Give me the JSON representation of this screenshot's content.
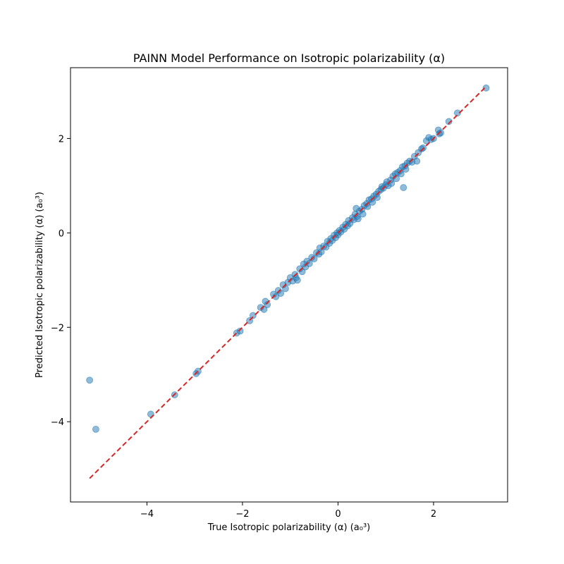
{
  "chart_data": {
    "type": "scatter",
    "title": "PAINN Model Performance on Isotropic polarizability (α)",
    "xlabel": "True Isotropic polarizability (α) (a₀³)",
    "ylabel": "Predicted Isotropic polarizability (α) (a₀³)",
    "xlim": [
      -5.6,
      3.55
    ],
    "ylim": [
      -5.7,
      3.5
    ],
    "xticks": [
      -4,
      -2,
      0,
      2
    ],
    "yticks": [
      -4,
      -2,
      0,
      2
    ],
    "xtick_labels": [
      "−4",
      "−2",
      "0",
      "2"
    ],
    "ytick_labels": [
      "−4",
      "−2",
      "0",
      "2"
    ],
    "grid": false,
    "legend": "none",
    "point_color": "#1f77b4",
    "point_alpha": 0.5,
    "reference_line": {
      "x": [
        -5.2,
        3.1
      ],
      "y": [
        -5.2,
        3.1
      ],
      "color": "#d62728",
      "style": "dashed"
    },
    "points": [
      [
        -5.2,
        -3.12
      ],
      [
        -5.07,
        -4.16
      ],
      [
        -3.92,
        -3.84
      ],
      [
        -3.42,
        -3.43
      ],
      [
        -2.97,
        -2.98
      ],
      [
        -2.93,
        -2.93
      ],
      [
        -2.12,
        -2.12
      ],
      [
        -2.05,
        -2.08
      ],
      [
        -1.85,
        -1.86
      ],
      [
        -1.78,
        -1.75
      ],
      [
        -1.62,
        -1.58
      ],
      [
        -1.55,
        -1.62
      ],
      [
        -1.52,
        -1.45
      ],
      [
        -1.48,
        -1.52
      ],
      [
        -1.35,
        -1.3
      ],
      [
        -1.3,
        -1.35
      ],
      [
        -1.25,
        -1.22
      ],
      [
        -1.2,
        -1.28
      ],
      [
        -1.15,
        -1.1
      ],
      [
        -1.1,
        -1.18
      ],
      [
        -1.05,
        -1.05
      ],
      [
        -1.0,
        -0.95
      ],
      [
        -0.95,
        -1.02
      ],
      [
        -0.9,
        -0.88
      ],
      [
        -0.88,
        -0.95
      ],
      [
        -0.85,
        -1.0
      ],
      [
        -0.8,
        -0.76
      ],
      [
        -0.75,
        -0.82
      ],
      [
        -0.72,
        -0.66
      ],
      [
        -0.68,
        -0.72
      ],
      [
        -0.65,
        -0.6
      ],
      [
        -0.6,
        -0.65
      ],
      [
        -0.55,
        -0.52
      ],
      [
        -0.5,
        -0.55
      ],
      [
        -0.45,
        -0.42
      ],
      [
        -0.4,
        -0.45
      ],
      [
        -0.38,
        -0.32
      ],
      [
        -0.35,
        -0.4
      ],
      [
        -0.3,
        -0.28
      ],
      [
        -0.25,
        -0.3
      ],
      [
        -0.22,
        -0.18
      ],
      [
        -0.18,
        -0.22
      ],
      [
        -0.15,
        -0.12
      ],
      [
        -0.12,
        -0.16
      ],
      [
        -0.08,
        -0.05
      ],
      [
        -0.05,
        -0.1
      ],
      [
        -0.02,
        0.0
      ],
      [
        0.0,
        -0.04
      ],
      [
        0.03,
        0.05
      ],
      [
        0.06,
        0.02
      ],
      [
        0.1,
        0.12
      ],
      [
        0.13,
        0.08
      ],
      [
        0.16,
        0.18
      ],
      [
        0.2,
        0.15
      ],
      [
        0.22,
        0.26
      ],
      [
        0.25,
        0.2
      ],
      [
        0.3,
        0.32
      ],
      [
        0.33,
        0.28
      ],
      [
        0.36,
        0.4
      ],
      [
        0.38,
        0.52
      ],
      [
        0.4,
        0.35
      ],
      [
        0.42,
        0.3
      ],
      [
        0.45,
        0.46
      ],
      [
        0.5,
        0.5
      ],
      [
        0.52,
        0.4
      ],
      [
        0.55,
        0.58
      ],
      [
        0.6,
        0.62
      ],
      [
        0.62,
        0.56
      ],
      [
        0.65,
        0.7
      ],
      [
        0.7,
        0.72
      ],
      [
        0.72,
        0.65
      ],
      [
        0.75,
        0.78
      ],
      [
        0.8,
        0.82
      ],
      [
        0.82,
        0.75
      ],
      [
        0.85,
        0.88
      ],
      [
        0.9,
        0.92
      ],
      [
        0.92,
        0.98
      ],
      [
        0.95,
        0.95
      ],
      [
        1.0,
        1.02
      ],
      [
        1.02,
        1.08
      ],
      [
        1.05,
        1.0
      ],
      [
        1.1,
        1.12
      ],
      [
        1.12,
        1.05
      ],
      [
        1.15,
        1.2
      ],
      [
        1.2,
        1.25
      ],
      [
        1.22,
        1.15
      ],
      [
        1.25,
        1.28
      ],
      [
        1.3,
        1.32
      ],
      [
        1.32,
        1.25
      ],
      [
        1.35,
        1.4
      ],
      [
        1.37,
        0.96
      ],
      [
        1.4,
        1.42
      ],
      [
        1.42,
        1.35
      ],
      [
        1.45,
        1.48
      ],
      [
        1.5,
        1.52
      ],
      [
        1.55,
        1.5
      ],
      [
        1.6,
        1.62
      ],
      [
        1.65,
        1.52
      ],
      [
        1.68,
        1.7
      ],
      [
        1.75,
        1.78
      ],
      [
        1.78,
        1.8
      ],
      [
        1.85,
        1.95
      ],
      [
        1.9,
        2.02
      ],
      [
        1.95,
        1.98
      ],
      [
        2.0,
        2.0
      ],
      [
        2.1,
        2.18
      ],
      [
        2.12,
        2.1
      ],
      [
        2.15,
        2.12
      ],
      [
        2.32,
        2.36
      ],
      [
        2.5,
        2.54
      ],
      [
        3.1,
        3.07
      ]
    ]
  }
}
